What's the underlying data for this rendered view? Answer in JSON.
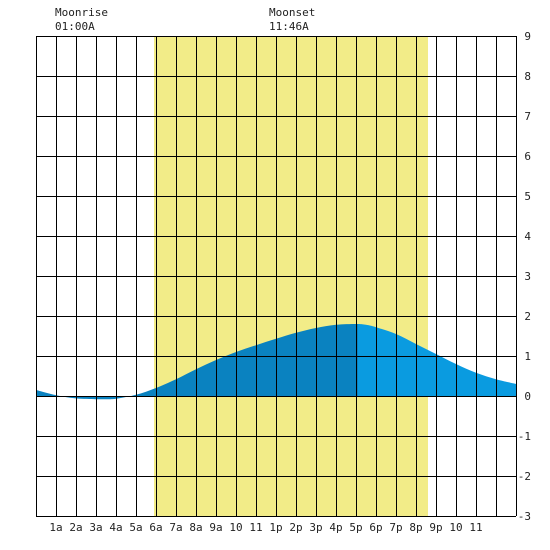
{
  "moonrise": {
    "label": "Moonrise",
    "time": "01:00A"
  },
  "moonset": {
    "label": "Moonset",
    "time": "11:46A"
  },
  "colors": {
    "daylight": "#f2ec88",
    "tide_past": "#0a82c0",
    "tide_future": "#0a9be0",
    "grid": "#000000"
  },
  "chart_data": {
    "type": "area",
    "title": "",
    "xlabel": "",
    "ylabel": "",
    "xlim": [
      0,
      24
    ],
    "ylim": [
      -3,
      9
    ],
    "grid": true,
    "x_tick_labels": [
      "1a",
      "2a",
      "3a",
      "4a",
      "5a",
      "6a",
      "7a",
      "8a",
      "9a",
      "10",
      "11",
      "1p",
      "2p",
      "3p",
      "4p",
      "5p",
      "6p",
      "7p",
      "8p",
      "9p",
      "10",
      "11"
    ],
    "y_ticks": [
      9,
      8,
      7,
      6,
      5,
      4,
      3,
      2,
      1,
      0,
      -1,
      -2,
      -3
    ],
    "y_tick_labels": [
      "9",
      "8",
      "7",
      "6",
      "5",
      "4",
      "3",
      "2",
      "1",
      "0",
      "-1",
      "-2",
      "-3"
    ],
    "daylight_hours": [
      5.9,
      19.6
    ],
    "now_hour": 16.1,
    "series": [
      {
        "x": [
          0,
          1,
          2,
          3,
          3.5,
          4,
          5,
          6,
          7,
          8,
          9,
          10,
          11,
          12,
          13,
          14,
          15,
          16,
          16.5,
          17,
          18,
          19,
          20,
          21,
          22,
          23,
          24
        ],
        "values": [
          0.15,
          0.02,
          -0.06,
          -0.08,
          -0.08,
          -0.07,
          0.03,
          0.2,
          0.42,
          0.67,
          0.9,
          1.1,
          1.27,
          1.43,
          1.58,
          1.7,
          1.78,
          1.8,
          1.78,
          1.72,
          1.55,
          1.3,
          1.05,
          0.8,
          0.58,
          0.42,
          0.3
        ]
      }
    ]
  }
}
